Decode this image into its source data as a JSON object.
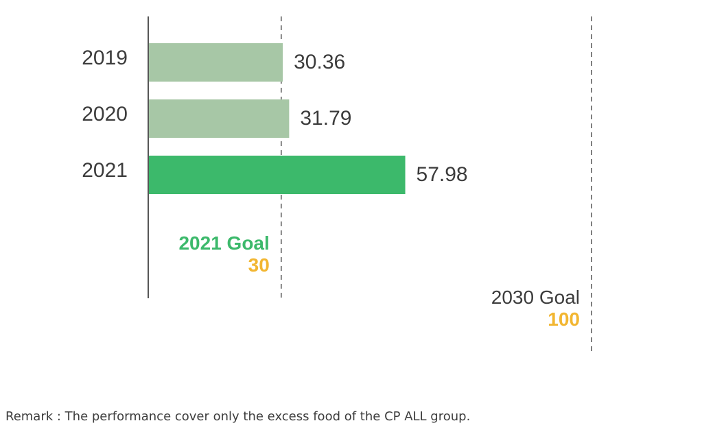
{
  "chart_data": {
    "type": "bar",
    "orientation": "horizontal",
    "categories": [
      "2019",
      "2020",
      "2021"
    ],
    "values": [
      30.36,
      31.79,
      57.98
    ],
    "value_labels": [
      "30.36",
      "31.79",
      "57.98"
    ],
    "bar_colors": [
      "#a7c7a6",
      "#a7c7a6",
      "#3cb96b"
    ],
    "xlim": [
      0,
      100
    ],
    "grid": false,
    "reference_lines": [
      {
        "value": 30,
        "label": "2021 Goal",
        "value_label": "30",
        "label_color": "#3cb96b",
        "value_color": "#f2b631"
      },
      {
        "value": 100,
        "label": "2030 Goal",
        "value_label": "100",
        "label_color": "#3c3c3c",
        "value_color": "#f2b631"
      }
    ]
  },
  "remark": "Remark : The performance cover only the excess food of the CP ALL group.",
  "colors": {
    "text": "#3c3c3c",
    "axis": "#555555",
    "dashed_line": "#555555"
  }
}
